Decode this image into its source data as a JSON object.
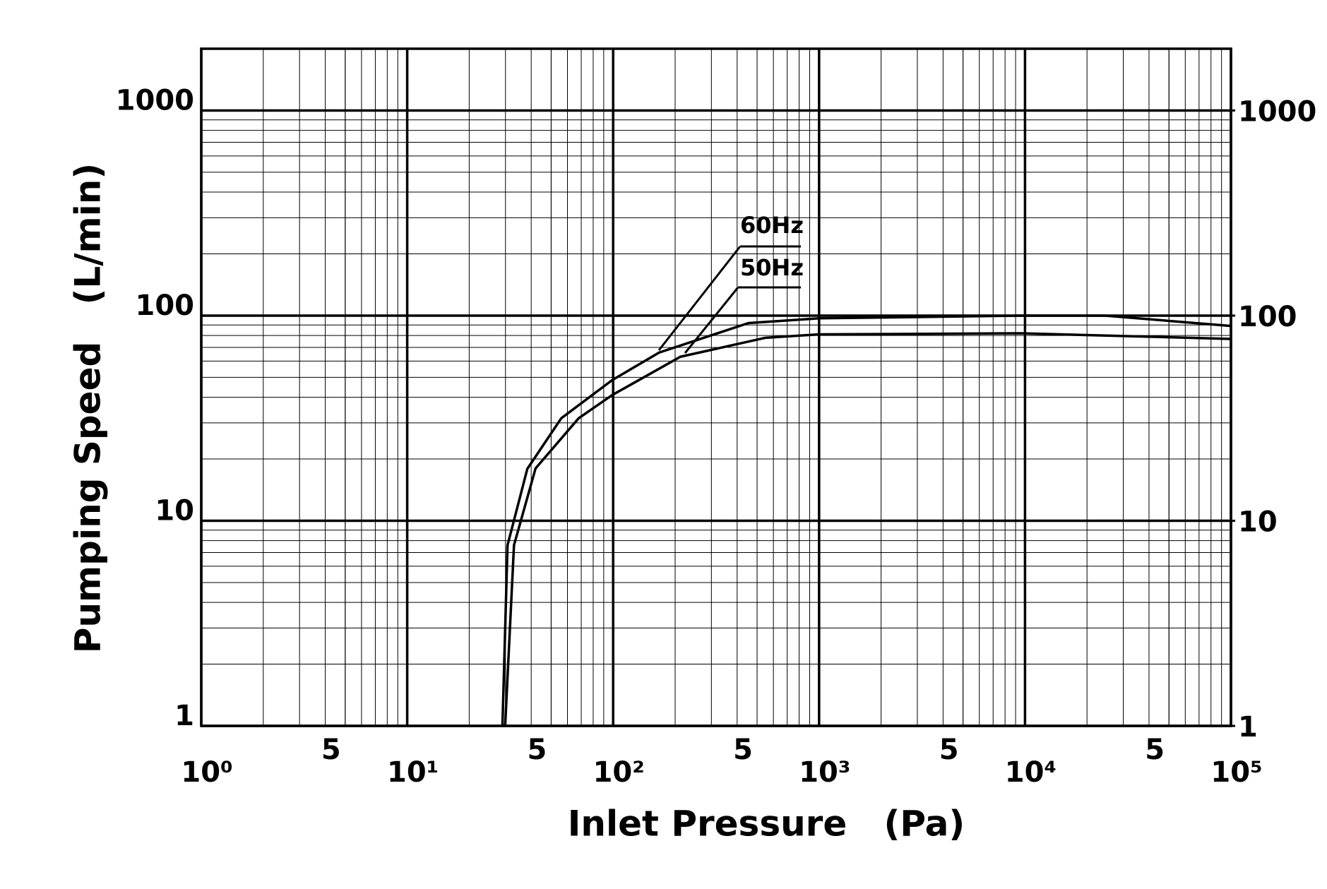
{
  "chart_data": {
    "type": "line",
    "x_label": "Inlet Pressure   (Pa)",
    "y_label": "Pumping Speed   (L/min)",
    "xscale": "log",
    "yscale": "log",
    "grid": true,
    "xlim": [
      1,
      100000
    ],
    "ylim": [
      1,
      2000
    ],
    "y2lim": [
      1,
      2000
    ],
    "xticks": [
      {
        "value": 1,
        "label": "10⁰"
      },
      5,
      {
        "value": 10,
        "label": "10¹"
      },
      {
        "value": 50,
        "label": "5"
      },
      {
        "value": 100,
        "label": "10²"
      },
      {
        "value": 500,
        "label": "5"
      },
      {
        "value": 1000,
        "label": "10³"
      },
      {
        "value": 5000,
        "label": "5"
      },
      {
        "value": 10000,
        "label": "10⁴"
      },
      {
        "value": 50000,
        "label": "5"
      },
      {
        "value": 100000,
        "label": "10⁵"
      }
    ],
    "yticks": [
      1,
      10,
      100,
      1000
    ],
    "y2ticks": [
      1,
      10,
      100,
      1000
    ],
    "series": [
      {
        "name": "60Hz",
        "color": "#000000",
        "x": [
          29,
          30.7,
          38.3,
          56,
          99,
          167,
          454,
          1000,
          9500,
          24500,
          100000
        ],
        "values": [
          1,
          7.6,
          17.9,
          31.6,
          48.5,
          66,
          92,
          97,
          100,
          100,
          89
        ]
      },
      {
        "name": "50Hz",
        "color": "#000000",
        "x": [
          29.9,
          33,
          42,
          68,
          99,
          212,
          550,
          1000,
          9500,
          100000
        ],
        "values": [
          1,
          7.6,
          18,
          31.6,
          41,
          63,
          78,
          81,
          82,
          77
        ]
      }
    ]
  }
}
